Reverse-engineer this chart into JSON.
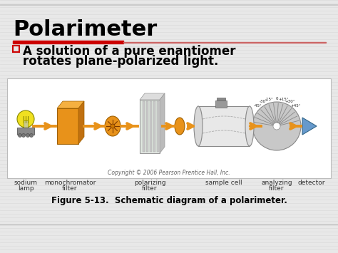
{
  "title": "Polarimeter",
  "title_fontsize": 22,
  "title_color": "#000000",
  "red_bar_left_color": "#cc0000",
  "red_bar_right_color": "#cc6666",
  "bullet_box_color": "#cc0000",
  "bullet_text_line1": "□  A solution of a pure enantiomer",
  "bullet_text_line2": "     rotates plane-polarized light.",
  "bullet_fontsize": 12,
  "bullet_color": "#000000",
  "slide_bg": "#e8e8e8",
  "diagram_bg": "#ffffff",
  "diagram_border": "#aaaaaa",
  "orange_color": "#e8921a",
  "lamp_yellow": "#f0e020",
  "lamp_edge": "#888800",
  "label_fontsize": 6.5,
  "label_color": "#333333",
  "copyright_text": "Copyright © 2006 Pearson Prentice Hall, Inc.",
  "copyright_fontsize": 5.5,
  "figure_caption": "Figure 5-13.  Schematic diagram of a polarimeter.",
  "caption_fontsize": 8.5,
  "gray_line_color": "#bbbbbb",
  "stripe_color": "#dcdcdc",
  "stripe_bg": "#e8e8e8"
}
